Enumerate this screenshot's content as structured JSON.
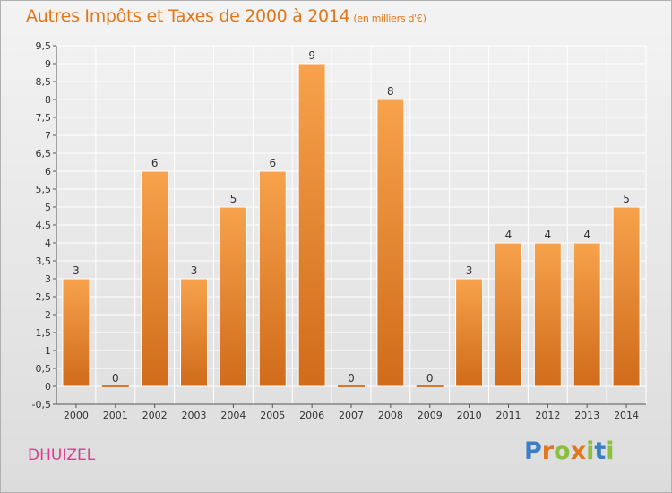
{
  "chart_data": {
    "type": "bar",
    "title": "Autres Impôts et Taxes de 2000 à 2014",
    "subtitle": "(en milliers d'€)",
    "categories": [
      "2000",
      "2001",
      "2002",
      "2003",
      "2004",
      "2005",
      "2006",
      "2007",
      "2008",
      "2009",
      "2010",
      "2011",
      "2012",
      "2013",
      "2014"
    ],
    "values": [
      3,
      0,
      6,
      3,
      5,
      6,
      9,
      0,
      8,
      0,
      3,
      4,
      4,
      4,
      5
    ],
    "ylim": [
      -0.5,
      9.5
    ],
    "yticks": [
      -0.5,
      0,
      0.5,
      1,
      1.5,
      2,
      2.5,
      3,
      3.5,
      4,
      4.5,
      5,
      5.5,
      6,
      6.5,
      7,
      7.5,
      8,
      8.5,
      9,
      9.5
    ],
    "ytick_labels": [
      "-0,5",
      "0",
      "0,5",
      "1",
      "1,5",
      "2",
      "2,5",
      "3",
      "3,5",
      "4",
      "4,5",
      "5",
      "5,5",
      "6",
      "6,5",
      "7",
      "7,5",
      "8",
      "8,5",
      "9",
      "9,5"
    ],
    "grid": true,
    "bar_color": "#f0923a"
  },
  "commune": "DHUIZEL",
  "logo": {
    "letters": [
      "P",
      "r",
      "o",
      "x",
      "i",
      "t",
      "i"
    ],
    "colors": [
      "#3a7fc6",
      "#e2761b",
      "#8cbf3f",
      "#e2761b",
      "#8cbf3f",
      "#3a7fc6",
      "#8cbf3f"
    ]
  }
}
